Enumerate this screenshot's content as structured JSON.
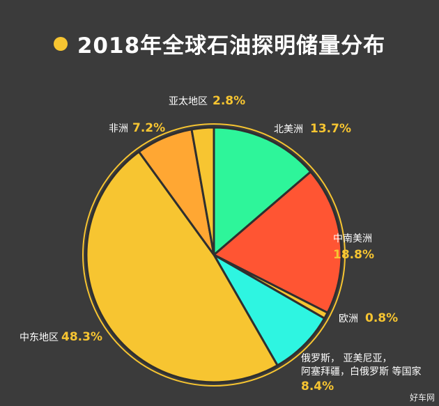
{
  "title": "2018年全球石油探明储量分布",
  "watermark": "好车网",
  "colors": {
    "background": "#3b3b3b",
    "accent": "#f7c531",
    "outline": "#2f2f2f"
  },
  "chart_data": {
    "type": "pie",
    "title": "2018年全球石油探明储量分布",
    "unit": "%",
    "slices": [
      {
        "label": "北美洲",
        "value": 13.7,
        "value_text": "13.7%",
        "color": "#2ef59a"
      },
      {
        "label": "中南美洲",
        "value": 18.8,
        "value_text": "18.8%",
        "color": "#ff5533"
      },
      {
        "label": "欧洲",
        "value": 0.8,
        "value_text": "0.8%",
        "color": "#f7c531"
      },
      {
        "label": "俄罗斯，亚美尼亚，阿塞拜疆，白俄罗斯 等国家",
        "label_lines": [
          "俄罗斯， 亚美尼亚，",
          "阿塞拜疆，白俄罗斯 等国家"
        ],
        "value": 8.4,
        "value_text": "8.4%",
        "color": "#2ef5e1"
      },
      {
        "label": "中东地区",
        "value": 48.3,
        "value_text": "48.3%",
        "color": "#f7c531"
      },
      {
        "label": "非洲",
        "value": 7.2,
        "value_text": "7.2%",
        "color": "#ffa733"
      },
      {
        "label": "亚太地区",
        "value": 2.8,
        "value_text": "2.8%",
        "color": "#f7c531"
      }
    ]
  }
}
